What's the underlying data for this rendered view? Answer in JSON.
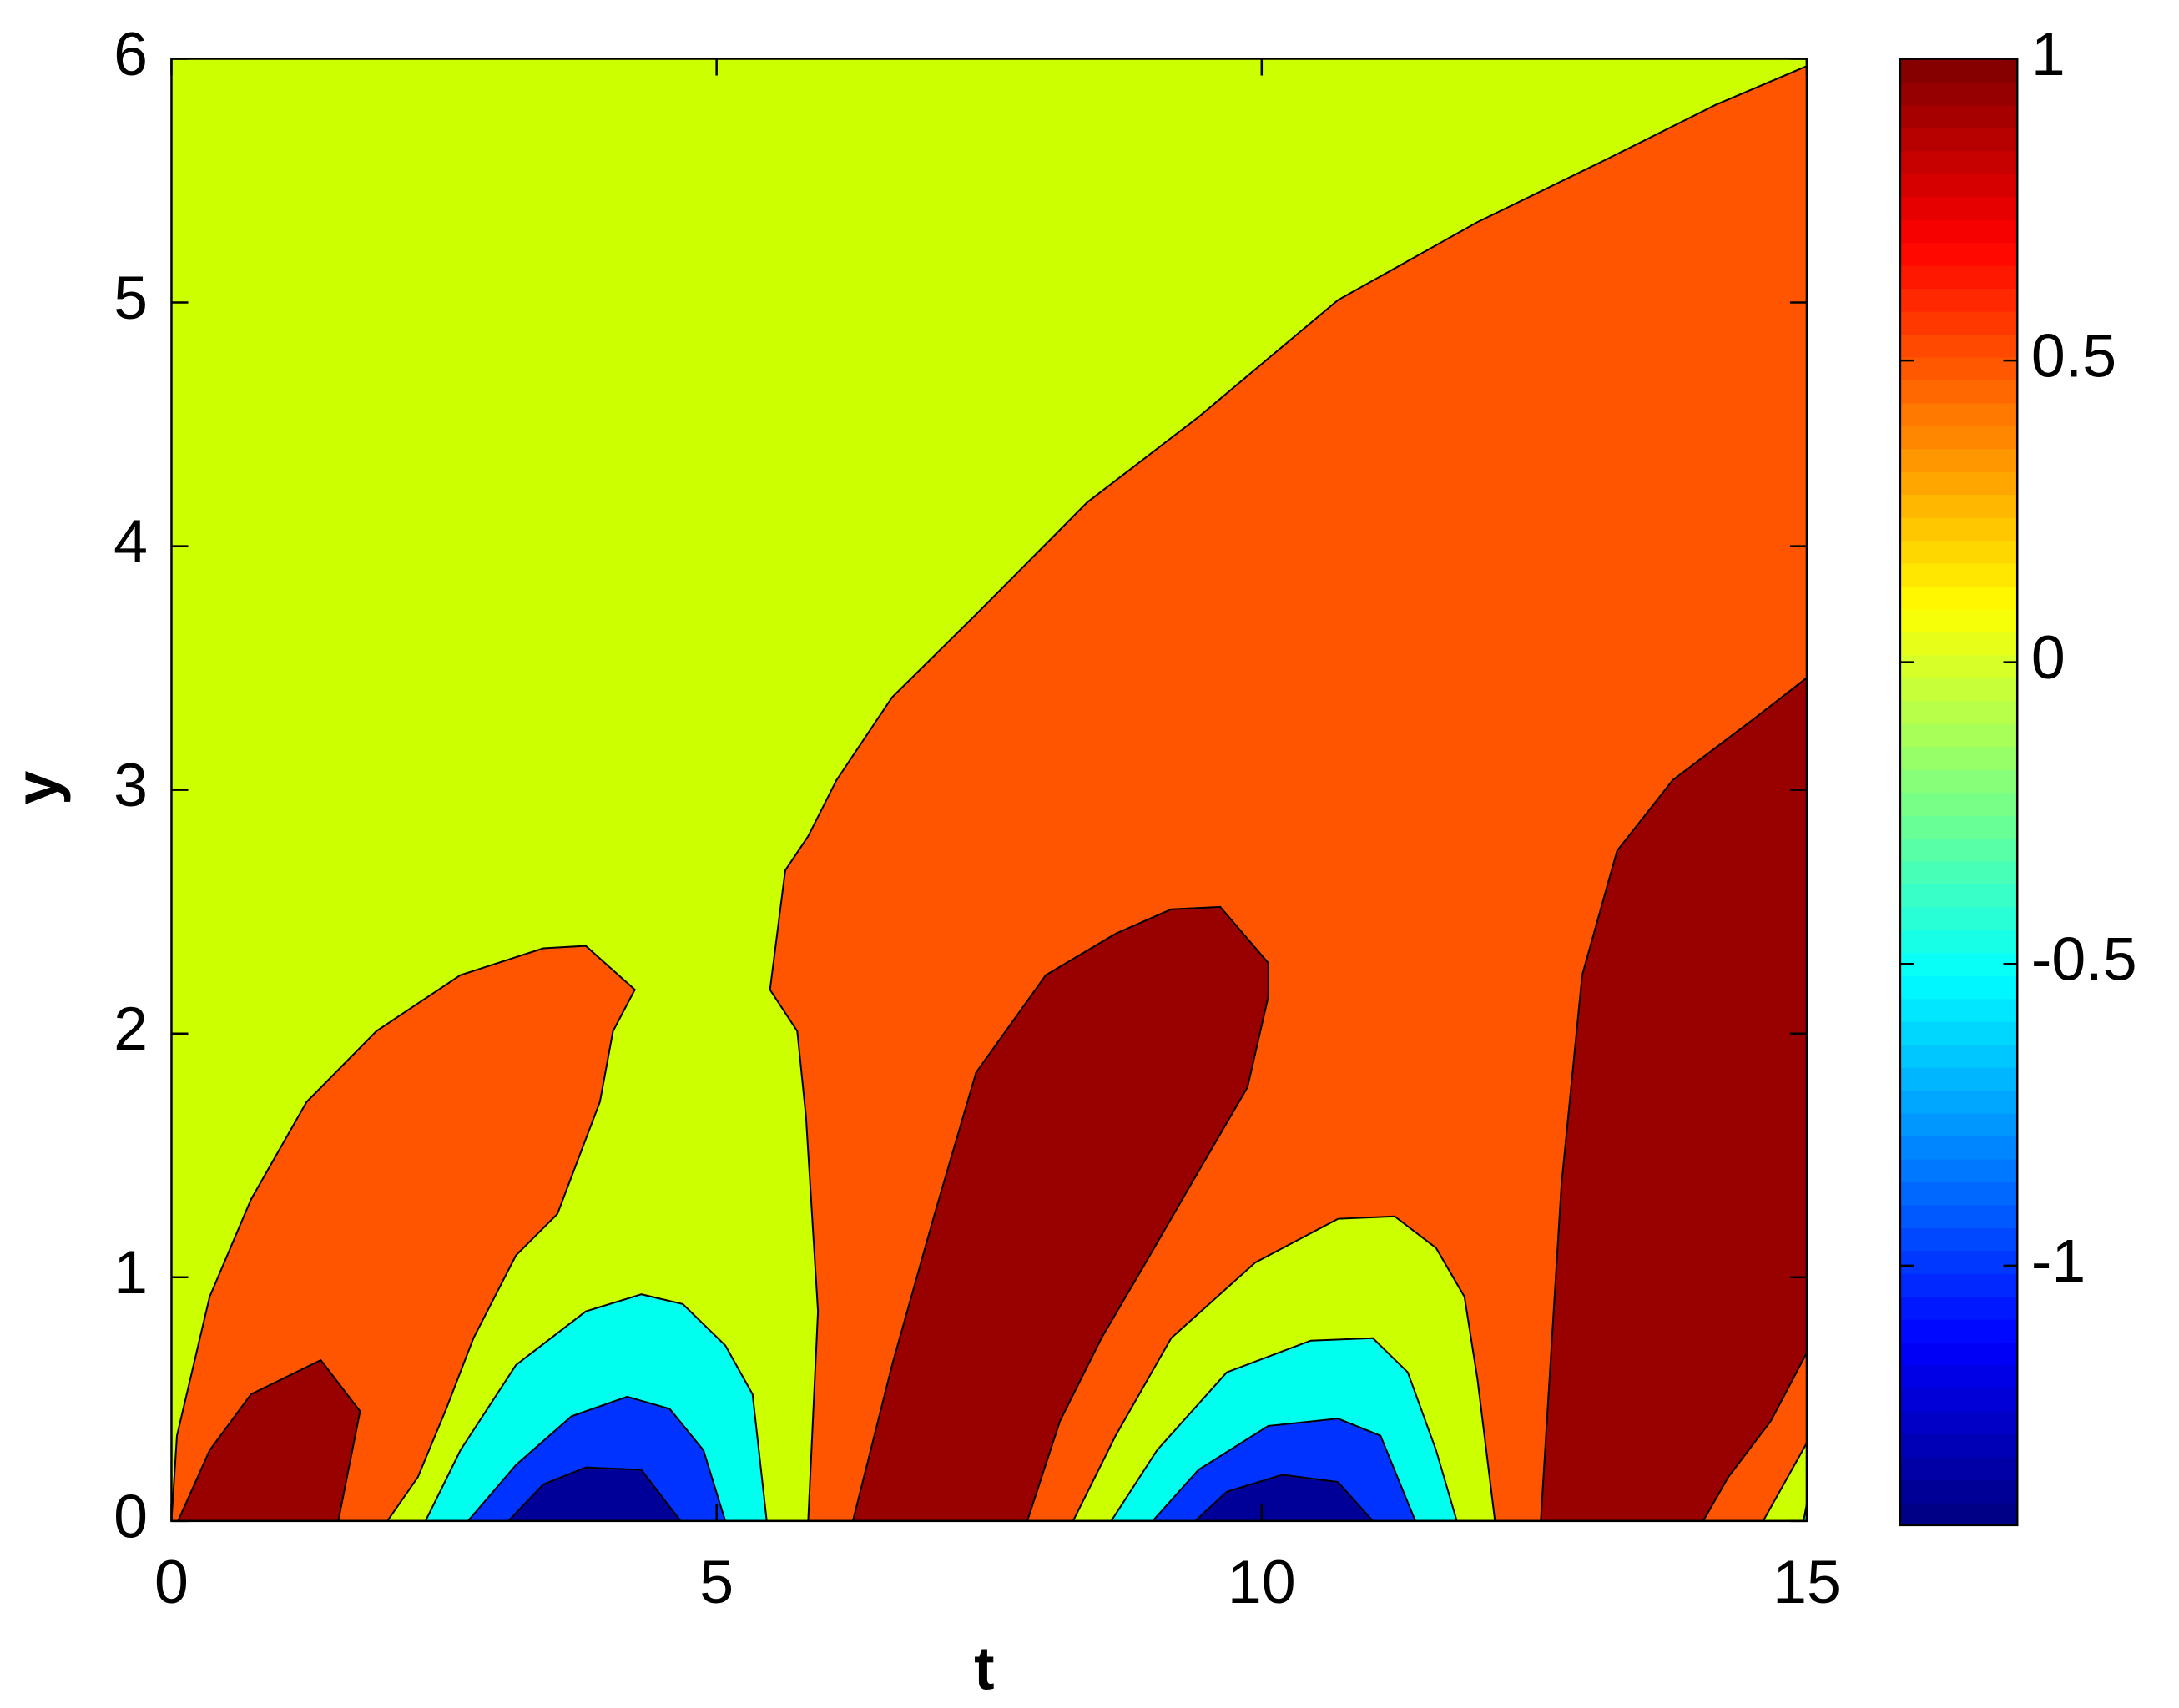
{
  "chart_data": {
    "type": "contourf",
    "xlabel": "t",
    "ylabel": "y",
    "xlim": [
      0,
      15
    ],
    "ylim": [
      0,
      6
    ],
    "xticks": [
      0,
      5,
      10,
      15
    ],
    "yticks": [
      0,
      1,
      2,
      3,
      4,
      5,
      6
    ],
    "regions": [
      {
        "color": "#ccff00",
        "t": [
          0,
          15,
          15,
          0
        ],
        "y": [
          0,
          0,
          6,
          6
        ]
      },
      {
        "color": "#ff5500",
        "t": [
          5.84,
          5.93,
          5.82,
          5.74,
          5.49,
          5.63,
          5.84,
          6.1,
          6.61,
          7.38,
          8.4,
          9.42,
          10.7,
          11.98,
          13.13,
          14.16,
          15,
          15
        ],
        "y": [
          0,
          0.86,
          1.66,
          2.01,
          2.18,
          2.67,
          2.81,
          3.04,
          3.38,
          3.72,
          4.18,
          4.53,
          5.01,
          5.33,
          5.58,
          5.81,
          5.97,
          0
        ]
      },
      {
        "color": "#ff5500",
        "t": [
          0,
          0.05,
          0.35,
          0.73,
          1.24,
          1.88,
          2.65,
          3.41,
          3.8,
          4.25,
          4.05,
          3.93,
          3.54,
          3.16,
          2.77,
          2.52,
          2.26,
          1.98
        ],
        "y": [
          0,
          0.35,
          0.92,
          1.32,
          1.72,
          2.01,
          2.24,
          2.35,
          2.36,
          2.18,
          2.01,
          1.72,
          1.26,
          1.09,
          0.75,
          0.46,
          0.18,
          0
        ]
      },
      {
        "color": "#990000",
        "t": [
          0.06,
          0.35,
          0.73,
          1.37,
          1.73,
          1.53
        ],
        "y": [
          0,
          0.29,
          0.52,
          0.66,
          0.45,
          0
        ]
      },
      {
        "color": "#990000",
        "t": [
          6.25,
          6.61,
          7.0,
          7.38,
          8.02,
          8.66,
          9.17,
          9.62,
          10.06,
          10.06,
          9.87,
          9.35,
          8.91,
          8.53,
          8.15,
          7.85
        ],
        "y": [
          0,
          0.64,
          1.26,
          1.84,
          2.24,
          2.41,
          2.51,
          2.52,
          2.29,
          2.15,
          1.78,
          1.38,
          1.04,
          0.75,
          0.41,
          0
        ]
      },
      {
        "color": "#990000",
        "t": [
          12.56,
          12.75,
          12.94,
          13.26,
          13.77,
          14.54,
          15,
          15,
          14.67,
          14.28,
          14.05
        ],
        "y": [
          0,
          1.38,
          2.24,
          2.75,
          3.04,
          3.3,
          3.46,
          0.69,
          0.41,
          0.18,
          0
        ]
      },
      {
        "color": "#ccff00",
        "t": [
          14.6,
          15,
          15
        ],
        "y": [
          0,
          0.32,
          0
        ]
      },
      {
        "color": "#00ffee",
        "t": [
          14.97,
          15,
          15
        ],
        "y": [
          0,
          0.07,
          0
        ]
      },
      {
        "color": "#00ffee",
        "t": [
          2.33,
          2.65,
          3.16,
          3.8,
          4.31,
          4.69,
          5.08,
          5.33,
          5.46
        ],
        "y": [
          0,
          0.29,
          0.64,
          0.86,
          0.93,
          0.89,
          0.72,
          0.52,
          0
        ]
      },
      {
        "color": "#0033ff",
        "t": [
          2.72,
          3.16,
          3.67,
          4.18,
          4.57,
          4.88,
          5.08
        ],
        "y": [
          0,
          0.23,
          0.43,
          0.51,
          0.46,
          0.29,
          0
        ]
      },
      {
        "color": "#000099",
        "t": [
          3.09,
          3.41,
          3.8,
          4.31,
          4.67
        ],
        "y": [
          0,
          0.15,
          0.22,
          0.21,
          0
        ]
      },
      {
        "color": "#ccff00",
        "t": [
          8.27,
          8.66,
          9.17,
          9.94,
          10.7,
          11.22,
          11.6,
          11.86,
          11.98,
          12.14
        ],
        "y": [
          0,
          0.35,
          0.75,
          1.06,
          1.24,
          1.25,
          1.12,
          0.92,
          0.58,
          0
        ]
      },
      {
        "color": "#00ffee",
        "t": [
          8.62,
          9.04,
          9.68,
          10.45,
          11.02,
          11.34,
          11.6,
          11.79
        ],
        "y": [
          0,
          0.29,
          0.61,
          0.74,
          0.75,
          0.61,
          0.29,
          0
        ]
      },
      {
        "color": "#0033ff",
        "t": [
          9.0,
          9.42,
          10.06,
          10.7,
          11.09,
          11.41
        ],
        "y": [
          0,
          0.21,
          0.39,
          0.42,
          0.35,
          0
        ]
      },
      {
        "color": "#000099",
        "t": [
          9.39,
          9.68,
          10.19,
          10.7,
          11.02
        ],
        "y": [
          0,
          0.12,
          0.19,
          0.16,
          0
        ]
      }
    ],
    "colorbar": {
      "colormap": "jet",
      "clim": [
        -1.43,
        1
      ],
      "ticks": [
        -1,
        -0.5,
        0,
        0.5,
        1
      ]
    }
  }
}
